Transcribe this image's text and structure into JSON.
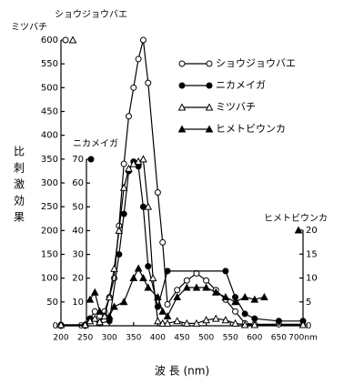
{
  "chart_data": {
    "type": "line",
    "xlabel": "波 長 (nm)",
    "ylabel": "比刺激効果",
    "ylabel_species": [
      "ショウジョウバエ",
      "ミツバチ"
    ],
    "y3label": "ニカメイガ",
    "y2label": "ヒメトビウンカ",
    "xlim": [
      200,
      700
    ],
    "xticks": [
      200,
      250,
      300,
      350,
      400,
      450,
      500,
      550,
      600,
      650,
      {
        "value": 700,
        "label": "700nm"
      }
    ],
    "ylim": [
      0,
      600
    ],
    "yticks": [
      0,
      50,
      100,
      150,
      200,
      250,
      300,
      350,
      400,
      450,
      500,
      550,
      600
    ],
    "y3lim": [
      0,
      70
    ],
    "y3ticks": [
      0,
      10,
      20,
      30,
      40,
      50,
      60,
      70
    ],
    "y2lim": [
      0,
      20
    ],
    "y2ticks": [
      0,
      5,
      10,
      15,
      20
    ],
    "series": [
      {
        "name": "ショウジョウバエ",
        "color": "#000000",
        "marker": "open-circle",
        "axis": "y",
        "x": [
          200,
          250,
          260,
          270,
          280,
          290,
          300,
          310,
          320,
          330,
          340,
          350,
          360,
          370,
          380,
          400,
          410,
          420,
          440,
          460,
          480,
          500,
          520,
          540,
          560,
          580,
          600,
          650,
          700
        ],
        "values": [
          2,
          2,
          15,
          30,
          20,
          30,
          60,
          100,
          210,
          340,
          440,
          500,
          560,
          600,
          510,
          280,
          175,
          45,
          75,
          95,
          110,
          95,
          75,
          55,
          30,
          5,
          3,
          3,
          3
        ]
      },
      {
        "name": "ニカメイガ",
        "color": "#000000",
        "marker": "filled-circle",
        "axis": "y3",
        "x": [
          200,
          250,
          260,
          280,
          300,
          320,
          330,
          340,
          350,
          360,
          370,
          380,
          400,
          420,
          540,
          560,
          580,
          600,
          650,
          700
        ],
        "values": [
          0,
          0,
          3,
          1,
          2,
          30,
          47,
          65,
          69,
          67,
          50,
          25,
          8,
          23,
          23,
          12,
          5,
          3,
          2,
          2
        ]
      },
      {
        "name": "ミツバチ",
        "color": "#000000",
        "marker": "open-triangle",
        "axis": "y",
        "x": [
          200,
          250,
          260,
          270,
          280,
          290,
          300,
          310,
          320,
          330,
          340,
          350,
          360,
          370,
          380,
          390,
          400,
          410,
          420,
          440,
          460,
          480,
          500,
          520,
          540,
          560,
          580,
          600,
          700
        ],
        "values": [
          2,
          2,
          10,
          15,
          8,
          20,
          60,
          120,
          200,
          290,
          330,
          340,
          345,
          350,
          250,
          100,
          10,
          5,
          5,
          10,
          5,
          5,
          12,
          15,
          12,
          5,
          2,
          2,
          2
        ]
      },
      {
        "name": "ヒメトビウンカ",
        "color": "#000000",
        "marker": "filled-triangle",
        "axis": "y2",
        "x": [
          260,
          270,
          280,
          300,
          310,
          330,
          350,
          360,
          370,
          380,
          400,
          410,
          420,
          440,
          460,
          480,
          500,
          520,
          540,
          560,
          580,
          600,
          620
        ],
        "values": [
          5.5,
          7,
          3,
          2,
          4,
          5,
          10,
          12,
          10,
          8,
          6,
          3,
          2,
          6,
          8,
          8,
          8,
          7,
          6,
          5,
          6,
          5.5,
          6
        ]
      }
    ],
    "legend": "upper-right"
  }
}
